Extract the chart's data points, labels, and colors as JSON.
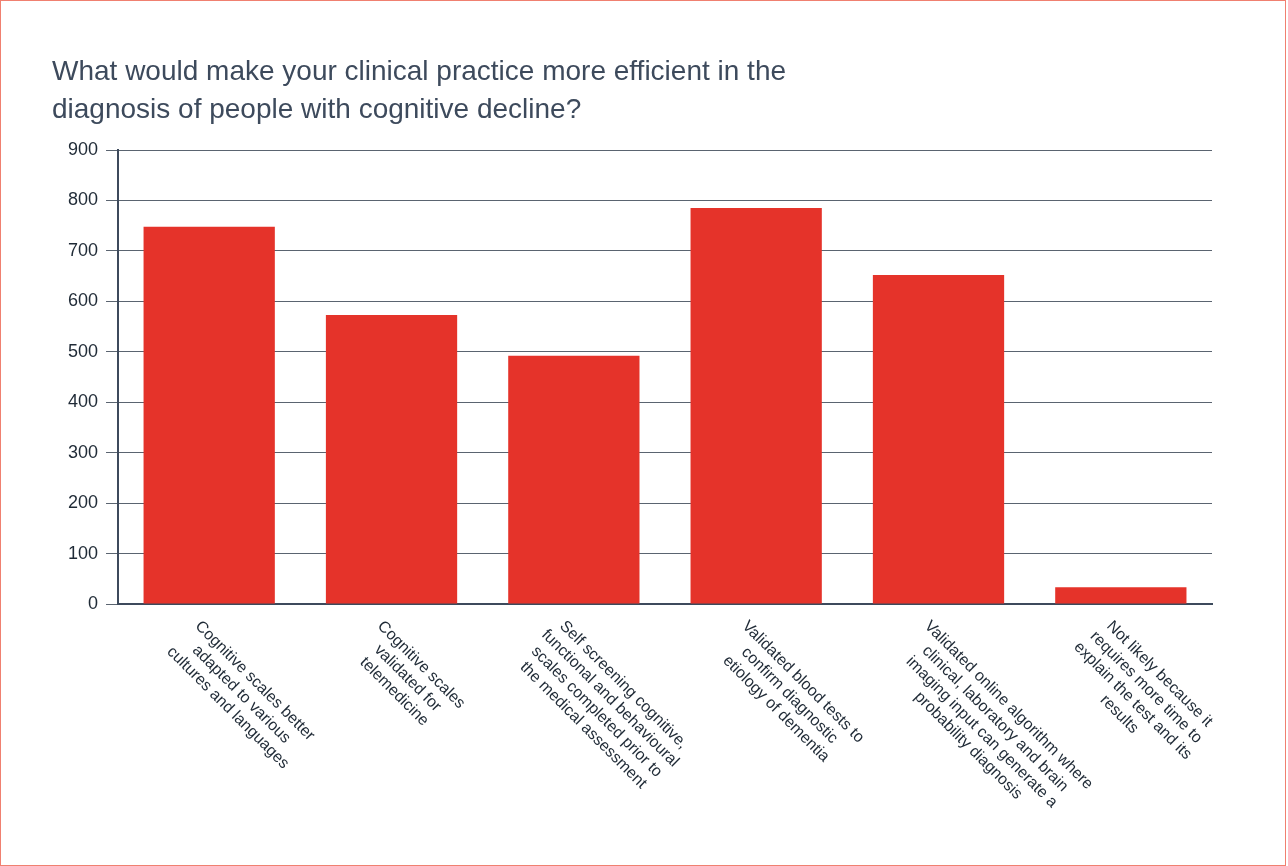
{
  "chart_data": {
    "type": "bar",
    "title": "What would make your clinical practice more efficient in the diagnosis of people with cognitive decline?",
    "categories": [
      "Cognitive scales better adapted to various cultures and languages",
      "Cognitive scales validated for telemedicine",
      "Self screening cognitive, functional and behavioural scales completed prior to the medical assessment",
      "Validated blood tests to confirm diagnostic etiology of dementia",
      "Validated online algorithm where clinical, laboratory and brain imaging input can generate a probability diagnosis",
      "Not likely because it requires more time to explain the test and its results"
    ],
    "values": [
      748,
      573,
      492,
      785,
      652,
      33
    ],
    "color": "#e5332a",
    "ylim": [
      0,
      900
    ],
    "yticks": [
      0,
      100,
      200,
      300,
      400,
      500,
      600,
      700,
      800,
      900
    ],
    "grid": "y"
  }
}
